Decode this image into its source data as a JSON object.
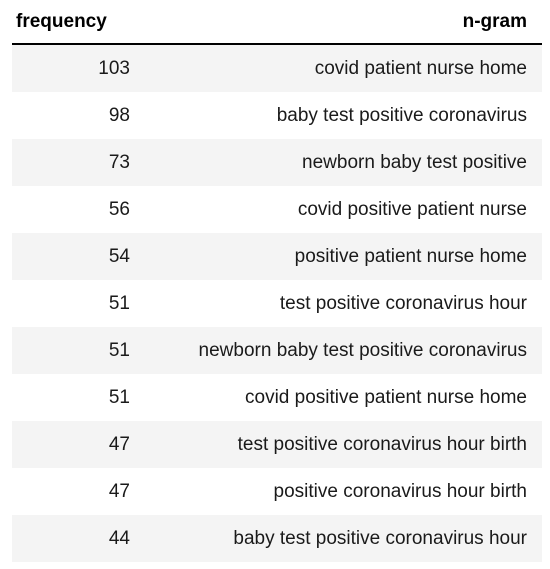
{
  "table": {
    "columns": [
      "frequency",
      "n-gram"
    ],
    "rows": [
      {
        "frequency": "103",
        "ngram": "covid patient nurse home"
      },
      {
        "frequency": "98",
        "ngram": "baby test positive coronavirus"
      },
      {
        "frequency": "73",
        "ngram": "newborn baby test positive"
      },
      {
        "frequency": "56",
        "ngram": "covid positive patient nurse"
      },
      {
        "frequency": "54",
        "ngram": "positive patient nurse home"
      },
      {
        "frequency": "51",
        "ngram": "test positive coronavirus hour"
      },
      {
        "frequency": "51",
        "ngram": "newborn baby test positive coronavirus"
      },
      {
        "frequency": "51",
        "ngram": "covid positive patient nurse home"
      },
      {
        "frequency": "47",
        "ngram": "test positive coronavirus hour birth"
      },
      {
        "frequency": "47",
        "ngram": "positive coronavirus hour birth"
      },
      {
        "frequency": "44",
        "ngram": "baby test positive coronavirus hour"
      }
    ]
  }
}
